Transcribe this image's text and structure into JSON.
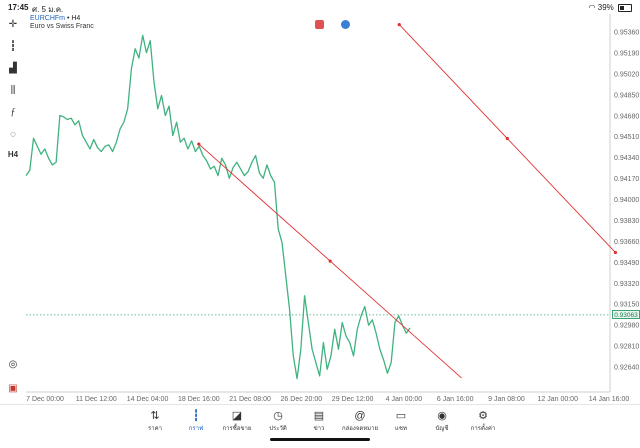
{
  "status_bar": {
    "time": "17:45",
    "date": "ศ. 5 ม.ค.",
    "battery": "39%",
    "battery_level": 0.39
  },
  "symbol": {
    "code": "EURCHFm",
    "timeframe": "H4",
    "description": "Euro vs Swiss Franc"
  },
  "toolbar": [
    "crosshair-icon",
    "candle-icon",
    "indicators-icon",
    "objects-icon",
    "function-icon",
    "shapes-icon",
    "H4"
  ],
  "current_price": "0.93063",
  "colors": {
    "line": "#3fb27f",
    "trend": "#e03030",
    "accent": "#1e62c2"
  },
  "chart_data": {
    "type": "line",
    "title": "",
    "y_ticks": [
      "0.95360",
      "0.95190",
      "0.95020",
      "0.94850",
      "0.94680",
      "0.94510",
      "0.94340",
      "0.94170",
      "0.94000",
      "0.93830",
      "0.93660",
      "0.93490",
      "0.93320",
      "0.93150",
      "0.92980",
      "0.92810",
      "0.92640"
    ],
    "x_ticks": [
      "7 Dec 00:00",
      "11 Dec 12:00",
      "14 Dec 04:00",
      "18 Dec 16:00",
      "21 Dec 08:00",
      "26 Dec 20:00",
      "29 Dec 12:00",
      "4 Jan 00:00",
      "6 Jan 16:00",
      "9 Jan 08:00",
      "12 Jan 00:00",
      "14 Jan 16:00"
    ],
    "ylim": [
      0.9258,
      0.9541
    ],
    "grid": false,
    "series": [
      {
        "values": [
          0.942,
          0.9424,
          0.9448,
          0.9442,
          0.9436,
          0.944,
          0.9433,
          0.9428,
          0.943,
          0.9465,
          0.9464,
          0.9462,
          0.9463,
          0.9458,
          0.9461,
          0.945,
          0.9445,
          0.944,
          0.9447,
          0.9441,
          0.9438,
          0.9442,
          0.9443,
          0.9438,
          0.9445,
          0.9455,
          0.946,
          0.947,
          0.95,
          0.9515,
          0.9508,
          0.9525,
          0.9512,
          0.9521,
          0.949,
          0.947,
          0.948,
          0.9465,
          0.9472,
          0.945,
          0.946,
          0.9445,
          0.9448,
          0.944,
          0.9446,
          0.9438,
          0.9442,
          0.9435,
          0.9431,
          0.9425,
          0.9427,
          0.942,
          0.9433,
          0.9428,
          0.9418,
          0.9426,
          0.943,
          0.9425,
          0.942,
          0.9423,
          0.943,
          0.9435,
          0.9422,
          0.9418,
          0.9428,
          0.942,
          0.9415,
          0.938,
          0.937,
          0.9345,
          0.932,
          0.9285,
          0.9268,
          0.929,
          0.933,
          0.931,
          0.929,
          0.928,
          0.927,
          0.9295,
          0.9275,
          0.9285,
          0.9305,
          0.929,
          0.931,
          0.93,
          0.9295,
          0.9285,
          0.9305,
          0.9315,
          0.9322,
          0.9308,
          0.9312,
          0.9302,
          0.929,
          0.9282,
          0.9272,
          0.928,
          0.931,
          0.9315,
          0.9308,
          0.9302,
          0.9306
        ]
      }
    ],
    "trendlines": [
      {
        "from": {
          "x": "18 Dec 16:00",
          "y": 0.9445
        },
        "to": {
          "x": "7 Jan 00:00",
          "y": 0.9255
        }
      },
      {
        "from": {
          "x": "3 Jan 12:00",
          "y": 0.9542
        },
        "to": {
          "x": "15 Jan 00:00",
          "y": 0.9357
        }
      }
    ]
  },
  "tabs": [
    {
      "label": "ราคา",
      "icon": "arrows-updown-icon"
    },
    {
      "label": "กราฟ",
      "icon": "candles-icon",
      "active": true
    },
    {
      "label": "การซื้อขาย",
      "icon": "trade-chart-icon"
    },
    {
      "label": "ประวัติ",
      "icon": "history-icon"
    },
    {
      "label": "ข่าว",
      "icon": "news-icon"
    },
    {
      "label": "กล่องจดหมาย",
      "icon": "at-icon"
    },
    {
      "label": "แชท",
      "icon": "chat-icon"
    },
    {
      "label": "บัญชี",
      "icon": "account-icon"
    },
    {
      "label": "การตั้งค่า",
      "icon": "gear-icon"
    }
  ]
}
